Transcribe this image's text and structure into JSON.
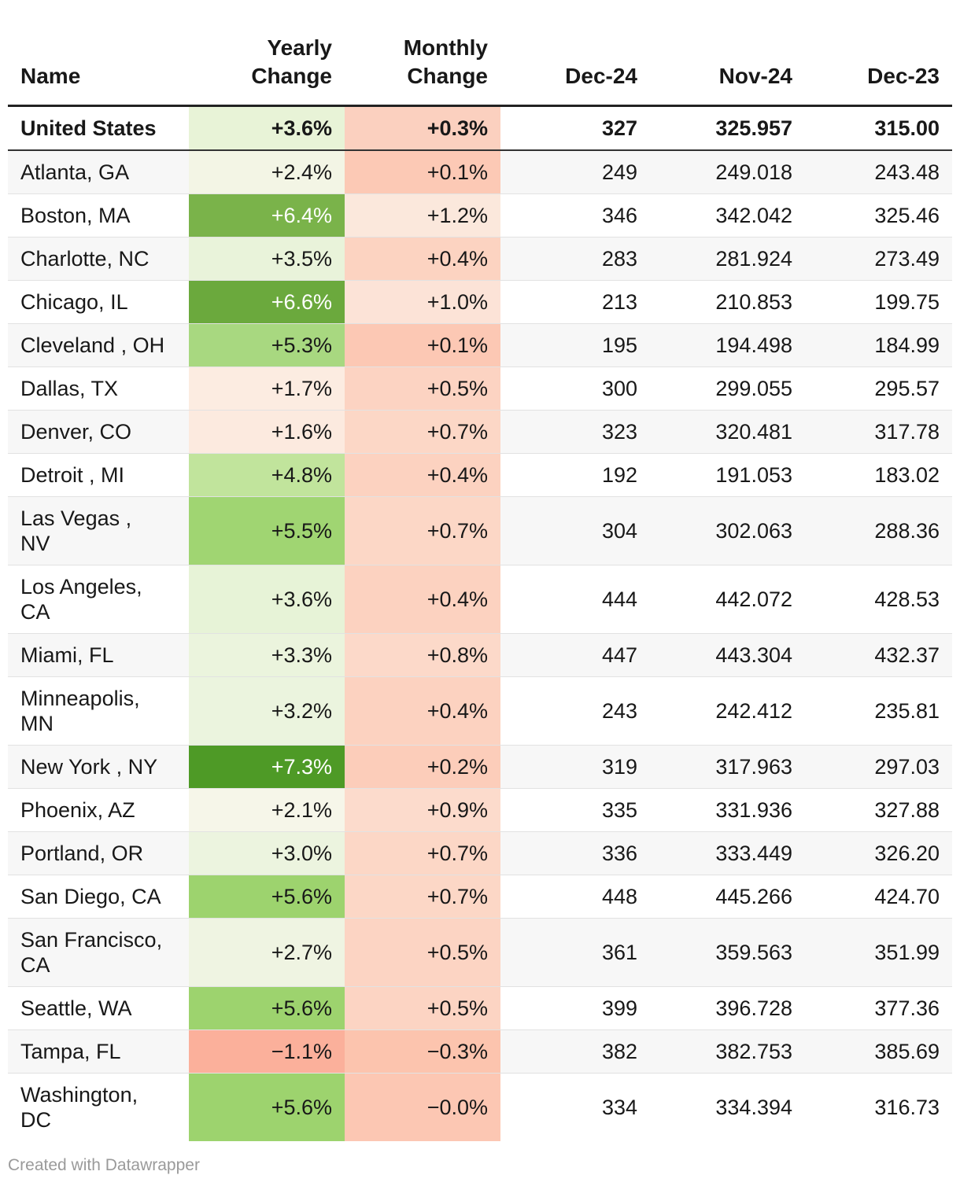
{
  "chart_data": {
    "type": "table",
    "columns": [
      "Name",
      "Yearly Change",
      "Monthly Change",
      "Dec-24",
      "Nov-24",
      "Dec-23"
    ],
    "header_lines": {
      "name": [
        "Name"
      ],
      "yearly": [
        "Yearly",
        "Change"
      ],
      "monthly": [
        "Monthly",
        "Change"
      ],
      "dec24": [
        "Dec-24"
      ],
      "nov24": [
        "Nov-24"
      ],
      "dec23": [
        "Dec-23"
      ]
    },
    "summary_row": {
      "name": "United States",
      "yearly": "+3.6%",
      "monthly": "+0.3%",
      "dec24": "327",
      "nov24": "325.957",
      "dec23": "315.00",
      "yearly_color": "#e8f3d7",
      "monthly_color": "#fbd0bf"
    },
    "rows": [
      {
        "name": [
          "Atlanta, GA"
        ],
        "yearly": "+2.4%",
        "monthly": "+0.1%",
        "dec24": "249",
        "nov24": "249.018",
        "dec23": "243.48",
        "yearly_color": "#f3f5e5",
        "monthly_color": "#fcc9b5",
        "yearly_text_light": false
      },
      {
        "name": [
          "Boston, MA"
        ],
        "yearly": "+6.4%",
        "monthly": "+1.2%",
        "dec24": "346",
        "nov24": "342.042",
        "dec23": "325.46",
        "yearly_color": "#7ab34a",
        "monthly_color": "#fbe8dc",
        "yearly_text_light": true
      },
      {
        "name": [
          "Charlotte, NC"
        ],
        "yearly": "+3.5%",
        "monthly": "+0.4%",
        "dec24": "283",
        "nov24": "281.924",
        "dec23": "273.49",
        "yearly_color": "#e9f3da",
        "monthly_color": "#fcd3c1",
        "yearly_text_light": false
      },
      {
        "name": [
          "Chicago, IL"
        ],
        "yearly": "+6.6%",
        "monthly": "+1.0%",
        "dec24": "213",
        "nov24": "210.853",
        "dec23": "199.75",
        "yearly_color": "#6ba93d",
        "monthly_color": "#fce3d7",
        "yearly_text_light": true
      },
      {
        "name": [
          "Cleveland , OH"
        ],
        "yearly": "+5.3%",
        "monthly": "+0.1%",
        "dec24": "195",
        "nov24": "194.498",
        "dec23": "184.99",
        "yearly_color": "#a8d880",
        "monthly_color": "#fcc8b4",
        "yearly_text_light": false
      },
      {
        "name": [
          "Dallas, TX"
        ],
        "yearly": "+1.7%",
        "monthly": "+0.5%",
        "dec24": "300",
        "nov24": "299.055",
        "dec23": "295.57",
        "yearly_color": "#fcece1",
        "monthly_color": "#fcd3c2",
        "yearly_text_light": false
      },
      {
        "name": [
          "Denver, CO"
        ],
        "yearly": "+1.6%",
        "monthly": "+0.7%",
        "dec24": "323",
        "nov24": "320.481",
        "dec23": "317.78",
        "yearly_color": "#fceadf",
        "monthly_color": "#fcd7c6",
        "yearly_text_light": false
      },
      {
        "name": [
          "Detroit , MI"
        ],
        "yearly": "+4.8%",
        "monthly": "+0.4%",
        "dec24": "192",
        "nov24": "191.053",
        "dec23": "183.02",
        "yearly_color": "#c1e49c",
        "monthly_color": "#fcd2c0",
        "yearly_text_light": false
      },
      {
        "name": [
          "Las Vegas ,",
          "NV"
        ],
        "yearly": "+5.5%",
        "monthly": "+0.7%",
        "dec24": "304",
        "nov24": "302.063",
        "dec23": "288.36",
        "yearly_color": "#a0d572",
        "monthly_color": "#fcd7c6",
        "yearly_text_light": false
      },
      {
        "name": [
          "Los Angeles,",
          "CA"
        ],
        "yearly": "+3.6%",
        "monthly": "+0.4%",
        "dec24": "444",
        "nov24": "442.072",
        "dec23": "428.53",
        "yearly_color": "#e7f3d7",
        "monthly_color": "#fcd2c0",
        "yearly_text_light": false
      },
      {
        "name": [
          "Miami, FL"
        ],
        "yearly": "+3.3%",
        "monthly": "+0.8%",
        "dec24": "447",
        "nov24": "443.304",
        "dec23": "432.37",
        "yearly_color": "#ebf4dd",
        "monthly_color": "#fcd9c9",
        "yearly_text_light": false
      },
      {
        "name": [
          "Minneapolis,",
          "MN"
        ],
        "yearly": "+3.2%",
        "monthly": "+0.4%",
        "dec24": "243",
        "nov24": "242.412",
        "dec23": "235.81",
        "yearly_color": "#ebf4de",
        "monthly_color": "#fcd2c0",
        "yearly_text_light": false
      },
      {
        "name": [
          "New York , NY"
        ],
        "yearly": "+7.3%",
        "monthly": "+0.2%",
        "dec24": "319",
        "nov24": "317.963",
        "dec23": "297.03",
        "yearly_color": "#4e9a26",
        "monthly_color": "#fccdba",
        "yearly_text_light": true
      },
      {
        "name": [
          "Phoenix, AZ"
        ],
        "yearly": "+2.1%",
        "monthly": "+0.9%",
        "dec24": "335",
        "nov24": "331.936",
        "dec23": "327.88",
        "yearly_color": "#f6f6e9",
        "monthly_color": "#fcdbcc",
        "yearly_text_light": false
      },
      {
        "name": [
          "Portland, OR"
        ],
        "yearly": "+3.0%",
        "monthly": "+0.7%",
        "dec24": "336",
        "nov24": "333.449",
        "dec23": "326.20",
        "yearly_color": "#ecf4df",
        "monthly_color": "#fcd7c6",
        "yearly_text_light": false
      },
      {
        "name": [
          "San Diego, CA"
        ],
        "yearly": "+5.6%",
        "monthly": "+0.7%",
        "dec24": "448",
        "nov24": "445.266",
        "dec23": "424.70",
        "yearly_color": "#9dd36e",
        "monthly_color": "#fcd7c6",
        "yearly_text_light": false
      },
      {
        "name": [
          "San Francisco,",
          "CA"
        ],
        "yearly": "+2.7%",
        "monthly": "+0.5%",
        "dec24": "361",
        "nov24": "359.563",
        "dec23": "351.99",
        "yearly_color": "#eff4e2",
        "monthly_color": "#fcd4c3",
        "yearly_text_light": false
      },
      {
        "name": [
          "Seattle, WA"
        ],
        "yearly": "+5.6%",
        "monthly": "+0.5%",
        "dec24": "399",
        "nov24": "396.728",
        "dec23": "377.36",
        "yearly_color": "#9dd36e",
        "monthly_color": "#fcd4c3",
        "yearly_text_light": false
      },
      {
        "name": [
          "Tampa, FL"
        ],
        "yearly": "−1.1%",
        "monthly": "−0.3%",
        "dec24": "382",
        "nov24": "382.753",
        "dec23": "385.69",
        "yearly_color": "#fbb09b",
        "monthly_color": "#fcc4ae",
        "yearly_text_light": false
      },
      {
        "name": [
          "Washington,",
          "DC"
        ],
        "yearly": "+5.6%",
        "monthly": "−0.0%",
        "dec24": "334",
        "nov24": "334.394",
        "dec23": "316.73",
        "yearly_color": "#9dd36e",
        "monthly_color": "#fcc7b3",
        "yearly_text_light": false
      }
    ]
  },
  "footer": {
    "credit": "Created with Datawrapper"
  }
}
